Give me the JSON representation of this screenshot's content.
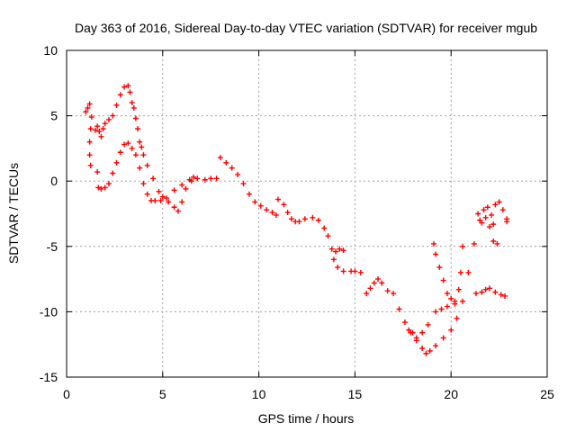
{
  "colors": {
    "series": "#ff0000",
    "grid": "#a0a0a0",
    "axis": "#000000",
    "background": "#ffffff"
  },
  "chart_data": {
    "type": "scatter",
    "title": "Day 363 of 2016, Sidereal Day-to-day VTEC variation (SDTVAR) for receiver mgub",
    "xlabel": "GPS time / hours",
    "ylabel": "SDTVAR / TECUs",
    "xlim": [
      0,
      25
    ],
    "ylim": [
      -15,
      10
    ],
    "grid": true,
    "x_ticks": [
      0,
      5,
      10,
      15,
      20,
      25
    ],
    "y_ticks": [
      -15,
      -10,
      -5,
      0,
      5,
      10
    ],
    "marker": "plus",
    "series": [
      {
        "points": [
          [
            1.0,
            5.3
          ],
          [
            1.1,
            5.6
          ],
          [
            1.2,
            5.9
          ],
          [
            1.3,
            4.9
          ],
          [
            1.25,
            4.0
          ],
          [
            1.2,
            3.0
          ],
          [
            1.2,
            2.0
          ],
          [
            1.25,
            1.2
          ],
          [
            1.5,
            3.9
          ],
          [
            1.6,
            4.2
          ],
          [
            1.7,
            3.8
          ],
          [
            1.8,
            3.4
          ],
          [
            1.9,
            4.0
          ],
          [
            2.0,
            4.4
          ],
          [
            2.2,
            4.7
          ],
          [
            2.4,
            5.0
          ],
          [
            2.6,
            5.8
          ],
          [
            2.8,
            6.6
          ],
          [
            3.0,
            7.2
          ],
          [
            3.2,
            7.3
          ],
          [
            3.3,
            6.8
          ],
          [
            3.4,
            6.0
          ],
          [
            3.5,
            5.6
          ],
          [
            3.6,
            4.8
          ],
          [
            3.7,
            4.0
          ],
          [
            3.8,
            3.0
          ],
          [
            3.9,
            2.6
          ],
          [
            4.0,
            2.0
          ],
          [
            4.2,
            1.2
          ],
          [
            4.5,
            0.2
          ],
          [
            4.8,
            -0.8
          ],
          [
            5.0,
            -1.2
          ],
          [
            5.3,
            -1.6
          ],
          [
            5.6,
            -2.0
          ],
          [
            5.8,
            -2.3
          ],
          [
            6.0,
            -1.6
          ],
          [
            6.2,
            -0.6
          ],
          [
            6.5,
            0.0
          ],
          [
            6.8,
            0.2
          ],
          [
            7.2,
            0.1
          ],
          [
            7.5,
            0.2
          ],
          [
            7.8,
            0.2
          ],
          [
            1.6,
            0.7
          ],
          [
            1.65,
            -0.5
          ],
          [
            1.8,
            -0.6
          ],
          [
            2.0,
            -0.5
          ],
          [
            2.2,
            -0.2
          ],
          [
            2.4,
            0.6
          ],
          [
            2.6,
            1.4
          ],
          [
            2.8,
            2.2
          ],
          [
            3.0,
            2.8
          ],
          [
            3.2,
            2.9
          ],
          [
            3.4,
            2.5
          ],
          [
            3.6,
            2.0
          ],
          [
            3.8,
            1.0
          ],
          [
            4.0,
            -0.2
          ],
          [
            4.2,
            -1.0
          ],
          [
            4.4,
            -1.5
          ],
          [
            4.6,
            -1.5
          ],
          [
            4.9,
            -1.5
          ],
          [
            5.2,
            -1.3
          ],
          [
            5.6,
            -0.7
          ],
          [
            6.0,
            -0.3
          ],
          [
            6.4,
            0.1
          ],
          [
            6.6,
            0.3
          ],
          [
            8.0,
            1.8
          ],
          [
            8.3,
            1.4
          ],
          [
            8.6,
            1.0
          ],
          [
            8.9,
            0.5
          ],
          [
            9.2,
            -0.2
          ],
          [
            9.5,
            -1.0
          ],
          [
            9.8,
            -1.6
          ],
          [
            10.1,
            -1.9
          ],
          [
            10.4,
            -2.2
          ],
          [
            10.7,
            -2.4
          ],
          [
            10.9,
            -2.6
          ],
          [
            11.0,
            -1.4
          ],
          [
            11.3,
            -1.8
          ],
          [
            11.5,
            -2.4
          ],
          [
            11.7,
            -2.9
          ],
          [
            11.9,
            -3.1
          ],
          [
            12.1,
            -3.1
          ],
          [
            12.4,
            -2.9
          ],
          [
            12.8,
            -2.8
          ],
          [
            13.1,
            -3.0
          ],
          [
            13.4,
            -3.6
          ],
          [
            13.6,
            -4.2
          ],
          [
            13.8,
            -5.2
          ],
          [
            14.0,
            -5.4
          ],
          [
            14.2,
            -5.2
          ],
          [
            14.4,
            -5.3
          ],
          [
            13.9,
            -6.0
          ],
          [
            14.1,
            -6.6
          ],
          [
            14.4,
            -6.9
          ],
          [
            14.8,
            -6.9
          ],
          [
            15.0,
            -6.9
          ],
          [
            15.3,
            -7.0
          ],
          [
            15.6,
            -8.6
          ],
          [
            15.8,
            -8.2
          ],
          [
            16.0,
            -7.8
          ],
          [
            16.2,
            -7.5
          ],
          [
            16.4,
            -7.8
          ],
          [
            16.7,
            -8.4
          ],
          [
            17.0,
            -8.6
          ],
          [
            17.3,
            -9.8
          ],
          [
            17.6,
            -10.8
          ],
          [
            17.9,
            -11.6
          ],
          [
            18.2,
            -12.2
          ],
          [
            18.5,
            -12.8
          ],
          [
            18.7,
            -13.2
          ],
          [
            18.9,
            -13.0
          ],
          [
            19.2,
            -12.6
          ],
          [
            19.6,
            -12.0
          ],
          [
            20.0,
            -11.4
          ],
          [
            20.3,
            -10.5
          ],
          [
            20.6,
            -9.2
          ],
          [
            20.9,
            -7.0
          ],
          [
            21.2,
            -4.8
          ],
          [
            21.5,
            -3.0
          ],
          [
            21.7,
            -2.2
          ],
          [
            21.9,
            -2.0
          ],
          [
            22.1,
            -2.6
          ],
          [
            22.2,
            -3.3
          ],
          [
            22.3,
            -1.8
          ],
          [
            22.5,
            -1.6
          ],
          [
            22.7,
            -2.2
          ],
          [
            22.9,
            -2.9
          ],
          [
            22.9,
            -3.1
          ],
          [
            17.8,
            -11.4
          ],
          [
            18.0,
            -11.6
          ],
          [
            18.2,
            -12.0
          ],
          [
            18.5,
            -11.6
          ],
          [
            18.8,
            -11.0
          ],
          [
            19.2,
            -10.0
          ],
          [
            19.5,
            -9.8
          ],
          [
            19.8,
            -9.6
          ],
          [
            20.2,
            -9.2
          ],
          [
            20.4,
            -8.3
          ],
          [
            20.5,
            -7.0
          ],
          [
            20.6,
            -5.0
          ],
          [
            19.1,
            -4.8
          ],
          [
            19.2,
            -5.6
          ],
          [
            19.4,
            -6.6
          ],
          [
            19.6,
            -7.6
          ],
          [
            19.8,
            -8.6
          ],
          [
            20.0,
            -9.0
          ],
          [
            20.2,
            -9.4
          ],
          [
            21.3,
            -8.6
          ],
          [
            21.6,
            -8.5
          ],
          [
            21.8,
            -8.3
          ],
          [
            22.0,
            -8.2
          ],
          [
            22.3,
            -8.5
          ],
          [
            22.6,
            -8.7
          ],
          [
            22.8,
            -8.8
          ],
          [
            21.4,
            -2.5
          ],
          [
            21.6,
            -3.2
          ],
          [
            21.8,
            -2.8
          ],
          [
            22.0,
            -3.5
          ],
          [
            22.2,
            -4.6
          ],
          [
            22.4,
            -4.8
          ]
        ]
      }
    ]
  }
}
